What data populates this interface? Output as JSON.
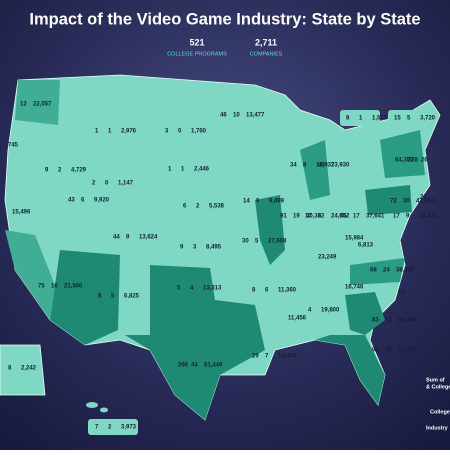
{
  "header": {
    "title": "Impact of the Video Game Industry: State by State",
    "programs": "521",
    "programs_label": "COLLEGE PROGRAMS",
    "companies": "2,711",
    "companies_label": "COMPANIES"
  },
  "states": [
    {
      "items": [
        "12",
        "22,057"
      ]
    },
    {
      "items": [
        "745"
      ]
    },
    {
      "items": [
        "1",
        "1",
        "2,976"
      ]
    },
    {
      "items": [
        "3",
        "0",
        "1,760"
      ]
    },
    {
      "items": [
        "46",
        "10",
        "13,477"
      ]
    },
    {
      "items": [
        "9",
        "2",
        "4,729"
      ]
    },
    {
      "items": [
        "2",
        "0",
        "1,147"
      ]
    },
    {
      "items": [
        "1",
        "1",
        "2,446"
      ]
    },
    {
      "items": [
        "34",
        "8",
        "13,937"
      ]
    },
    {
      "items": [
        "40",
        "23,930"
      ]
    },
    {
      "items": [
        "15,496"
      ]
    },
    {
      "items": [
        "43",
        "6",
        "9,920"
      ]
    },
    {
      "items": [
        "44",
        "9",
        "13,624"
      ]
    },
    {
      "items": [
        "6",
        "2",
        "5,538"
      ]
    },
    {
      "items": [
        "14",
        "9",
        "9,499"
      ]
    },
    {
      "items": [
        "91",
        "19",
        "40,322"
      ]
    },
    {
      "items": [
        "17",
        "6",
        "24,052"
      ]
    },
    {
      "items": [
        "55",
        "17",
        "37,641"
      ]
    },
    {
      "items": [
        "72",
        "30",
        "43,284"
      ]
    },
    {
      "items": [
        "64,357",
        "228",
        "26"
      ]
    },
    {
      "items": [
        "8",
        "1",
        "1,571"
      ]
    },
    {
      "items": [
        "15",
        "5",
        "3,720"
      ]
    },
    {
      "items": [
        "21"
      ]
    },
    {
      "items": [
        "17",
        "9",
        "28,325"
      ]
    },
    {
      "items": [
        "6,813"
      ]
    },
    {
      "items": [
        "15,984"
      ]
    },
    {
      "items": [
        "9",
        "3",
        "8,495"
      ]
    },
    {
      "items": [
        "30",
        "5",
        "27,608"
      ]
    },
    {
      "items": [
        "23,249"
      ]
    },
    {
      "items": [
        "68",
        "24",
        "38,305"
      ]
    },
    {
      "items": [
        "16,746"
      ]
    },
    {
      "items": [
        "12"
      ]
    },
    {
      "items": [
        "75",
        "16",
        "21,500"
      ]
    },
    {
      "items": [
        "8",
        "5",
        "6,825"
      ]
    },
    {
      "items": [
        "5",
        "4",
        "13,313"
      ]
    },
    {
      "items": [
        "8",
        "6",
        "11,360"
      ]
    },
    {
      "items": [
        "11,456"
      ]
    },
    {
      "items": [
        "4",
        "19,800"
      ]
    },
    {
      "items": [
        "83",
        "13",
        "39,499"
      ]
    },
    {
      "items": [
        "266",
        "44",
        "81,449"
      ]
    },
    {
      "items": [
        "29",
        "7",
        "14,470"
      ]
    },
    {
      "items": [
        "96",
        "28",
        "71,467"
      ]
    },
    {
      "items": [
        "8",
        "2,242"
      ]
    },
    {
      "items": [
        "7",
        "2",
        "3,973"
      ]
    }
  ],
  "legend": [
    "Sum of",
    "& College",
    "College",
    "Industry"
  ]
}
